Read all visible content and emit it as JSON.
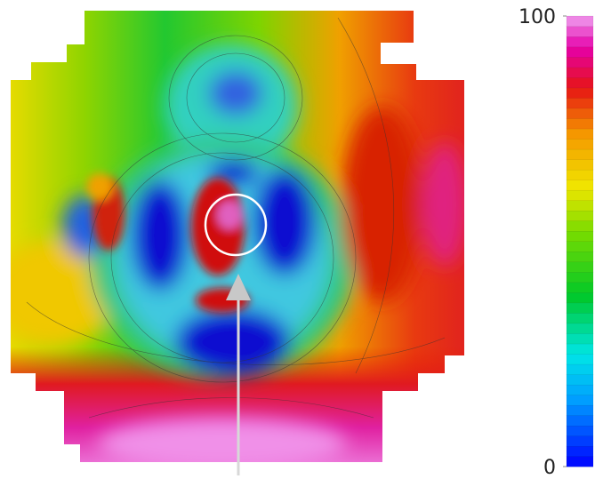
{
  "chart_data": {
    "type": "contour",
    "colorbar": {
      "lim": [
        0,
        100
      ],
      "ticks": [
        0,
        100
      ]
    }
  }
}
